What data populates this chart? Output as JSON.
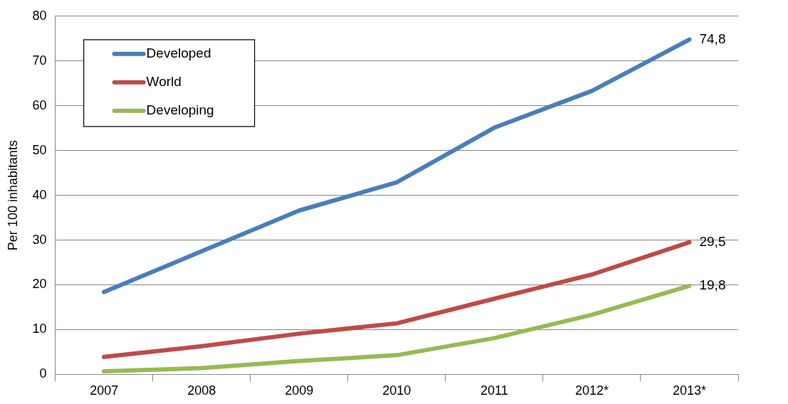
{
  "chart_data": {
    "type": "line",
    "ylabel": "Per 100 inhabitants",
    "categories": [
      "2007",
      "2008",
      "2009",
      "2010",
      "2011",
      "2012*",
      "2013*"
    ],
    "series": [
      {
        "name": "Developed",
        "color": "#4a7ebb",
        "values": [
          18.4,
          27.5,
          36.6,
          42.9,
          55.1,
          63.3,
          74.8
        ],
        "value_labels": [
          null,
          null,
          null,
          null,
          null,
          null,
          "74,8"
        ]
      },
      {
        "name": "World",
        "color": "#be4b48",
        "values": [
          3.9,
          6.3,
          9.1,
          11.4,
          16.9,
          22.3,
          29.5
        ],
        "value_labels": [
          null,
          null,
          null,
          null,
          null,
          null,
          "29,5"
        ]
      },
      {
        "name": "Developing",
        "color": "#98b954",
        "values": [
          0.7,
          1.4,
          3.0,
          4.3,
          8.1,
          13.3,
          19.8
        ],
        "value_labels": [
          null,
          null,
          null,
          null,
          null,
          null,
          "19,8"
        ]
      }
    ],
    "ylim": [
      0,
      80
    ],
    "yticks": [
      0,
      10,
      20,
      30,
      40,
      50,
      60,
      70,
      80
    ],
    "grid": "y",
    "legend": "top left",
    "marker": "none",
    "line_style": "solid"
  }
}
